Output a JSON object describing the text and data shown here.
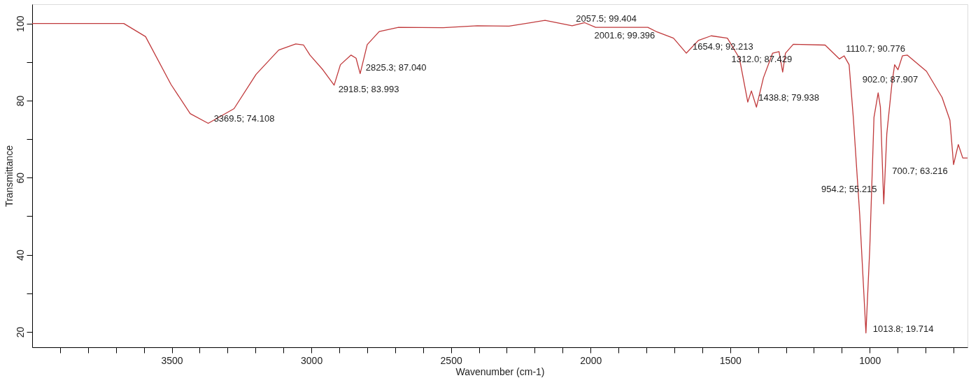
{
  "chart_data": {
    "type": "line",
    "xlabel": "Wavenumber (cm-1)",
    "ylabel": "Transmittance",
    "xlim": [
      4000,
      650
    ],
    "ylim": [
      16,
      105
    ],
    "xticks": [
      {
        "value": 3900,
        "label": null
      },
      {
        "value": 3800,
        "label": null
      },
      {
        "value": 3700,
        "label": null
      },
      {
        "value": 3600,
        "label": null
      },
      3500,
      {
        "value": 3400,
        "label": null
      },
      {
        "value": 3300,
        "label": null
      },
      {
        "value": 3200,
        "label": null
      },
      {
        "value": 3100,
        "label": null
      },
      3000,
      {
        "value": 2900,
        "label": null
      },
      {
        "value": 2800,
        "label": null
      },
      {
        "value": 2700,
        "label": null
      },
      {
        "value": 2600,
        "label": null
      },
      2500,
      {
        "value": 2400,
        "label": null
      },
      {
        "value": 2300,
        "label": null
      },
      {
        "value": 2200,
        "label": null
      },
      {
        "value": 2100,
        "label": null
      },
      2000,
      {
        "value": 1900,
        "label": null
      },
      {
        "value": 1800,
        "label": null
      },
      {
        "value": 1700,
        "label": null
      },
      {
        "value": 1600,
        "label": null
      },
      1500,
      {
        "value": 1400,
        "label": null
      },
      {
        "value": 1300,
        "label": null
      },
      {
        "value": 1200,
        "label": null
      },
      {
        "value": 1100,
        "label": null
      },
      1000,
      {
        "value": 900,
        "label": null
      },
      {
        "value": 800,
        "label": null
      },
      {
        "value": 700,
        "label": null
      }
    ],
    "yticks": [
      20,
      {
        "value": 30,
        "label": null
      },
      40,
      {
        "value": 50,
        "label": null
      },
      60,
      {
        "value": 70,
        "label": null
      },
      80,
      {
        "value": 90,
        "label": null
      },
      100
    ],
    "grid": false,
    "marker": "none",
    "line_style": "solid",
    "series": [
      {
        "color": "#c0393b",
        "x": [
          4000,
          3672,
          3594,
          3503,
          3434,
          3369.5,
          3277,
          3198,
          3117,
          3056,
          3028,
          3005,
          2959,
          2918.5,
          2896,
          2858,
          2840,
          2825.3,
          2800,
          2757,
          2688,
          2528,
          2406,
          2292,
          2163,
          2066,
          2021,
          1982,
          1795,
          1762,
          1703,
          1657,
          1614,
          1568,
          1510,
          1467,
          1437,
          1424,
          1406,
          1381,
          1348,
          1325,
          1312,
          1302,
          1274,
          1160,
          1109,
          1092,
          1074,
          1059,
          1036,
          1013.8,
          1000,
          985,
          970,
          962,
          950,
          939,
          921,
          911,
          899,
          883,
          866,
          797,
          741,
          713,
          700,
          683,
          667,
          650
        ],
        "values": [
          100,
          100,
          96.6,
          84.2,
          76.6,
          74.1,
          77.9,
          86.8,
          93.1,
          94.7,
          94.4,
          91.8,
          88.0,
          84.0,
          89.3,
          91.8,
          91.0,
          87.0,
          94.5,
          97.9,
          99.0,
          98.9,
          99.4,
          99.3,
          100.8,
          99.4,
          100.2,
          99.0,
          99.0,
          97.8,
          96.2,
          92.3,
          95.6,
          96.8,
          96.2,
          91.0,
          79.6,
          82.5,
          78.3,
          85.9,
          92.3,
          92.7,
          87.4,
          92.3,
          94.6,
          94.4,
          90.8,
          91.6,
          89.3,
          75.6,
          50.3,
          19.7,
          41.7,
          75.6,
          82.0,
          78.3,
          53.2,
          71.4,
          84.2,
          89.3,
          88.0,
          91.6,
          91.8,
          87.6,
          80.8,
          74.9,
          63.4,
          68.6,
          65.1,
          65.1
        ]
      }
    ],
    "annotations": [
      {
        "text": "3369.5; 74.108",
        "x": 3369.5,
        "y": 74.108
      },
      {
        "text": "2918.5; 83.993",
        "x": 2918.5,
        "y": 83.993
      },
      {
        "text": "2825.3; 87.040",
        "x": 2825.3,
        "y": 87.04
      },
      {
        "text": "2057.5; 99.404",
        "x": 2057.5,
        "y": 99.404
      },
      {
        "text": "2001.6; 99.396",
        "x": 2001.6,
        "y": 99.396
      },
      {
        "text": "1654.9; 92.213",
        "x": 1654.9,
        "y": 92.213
      },
      {
        "text": "1312.0; 87.429",
        "x": 1312.0,
        "y": 87.429
      },
      {
        "text": "1438.8; 79.938",
        "x": 1438.8,
        "y": 79.938
      },
      {
        "text": "1110.7; 90.776",
        "x": 1110.7,
        "y": 90.776
      },
      {
        "text": "902.0; 87.907",
        "x": 902.0,
        "y": 87.907
      },
      {
        "text": "700.7; 63.216",
        "x": 700.7,
        "y": 63.216
      },
      {
        "text": "954.2; 55.215",
        "x": 954.2,
        "y": 55.215
      },
      {
        "text": "1013.8; 19.714",
        "x": 1013.8,
        "y": 19.714
      }
    ]
  }
}
